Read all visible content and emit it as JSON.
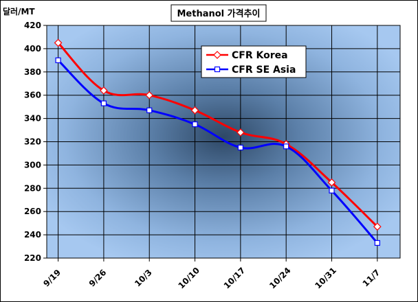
{
  "chart_data": {
    "type": "line",
    "title": "Methanol 가격추이",
    "ylabel": "달러/MT",
    "xlabel": "",
    "categories": [
      "9/19",
      "9/26",
      "10/3",
      "10/10",
      "10/17",
      "10/24",
      "10/31",
      "11/7"
    ],
    "ylim": [
      220,
      420
    ],
    "yticks": [
      220,
      240,
      260,
      280,
      300,
      320,
      340,
      360,
      380,
      400,
      420
    ],
    "grid": true,
    "legend": "top-center",
    "series": [
      {
        "name": "CFR Korea",
        "color": "#ff0000",
        "marker": "diamond",
        "values": [
          405,
          364,
          360,
          347,
          328,
          318,
          285,
          247
        ]
      },
      {
        "name": "CFR SE Asia",
        "color": "#0000ff",
        "marker": "square",
        "values": [
          390,
          353,
          347,
          335,
          315,
          316,
          278,
          233
        ]
      }
    ]
  }
}
